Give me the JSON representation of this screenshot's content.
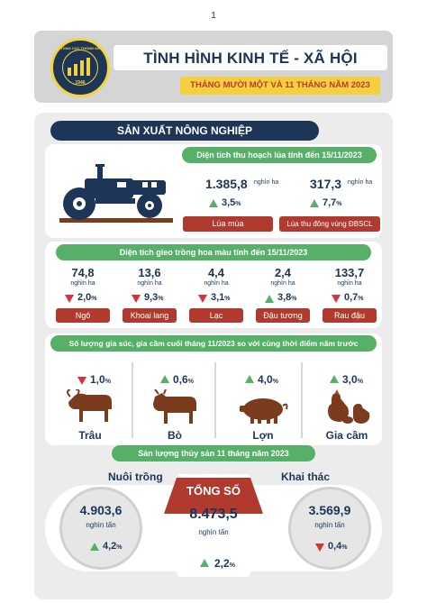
{
  "page_number": "1",
  "header": {
    "logo_text": "TỔNG CỤC THỐNG KÊ",
    "logo_years": "1946",
    "title": "TÌNH HÌNH KINH TẾ - XÃ HỘI",
    "subtitle": "THÁNG MƯỜI MỘT VÀ 11 THÁNG NĂM 2023"
  },
  "section_title": "SẢN XUẤT NÔNG NGHIỆP",
  "rice": {
    "heading": "Diện tích thu hoạch lúa tính đến 15/11/2023",
    "items": [
      {
        "value": "1.385,8",
        "unit": "nghìn ha",
        "change": "3,5",
        "pct": "%",
        "direction": "up",
        "label": "Lúa mùa"
      },
      {
        "value": "317,3",
        "unit": "nghìn ha",
        "change": "7,7",
        "pct": "%",
        "direction": "up",
        "label": "Lúa thu đông vùng ĐBSCL"
      }
    ]
  },
  "crops": {
    "heading": "Diện tích gieo trồng hoa màu tính đến 15/11/2023",
    "items": [
      {
        "value": "74,8",
        "unit": "nghìn ha",
        "change": "2,0",
        "pct": "%",
        "direction": "down",
        "label": "Ngô"
      },
      {
        "value": "13,6",
        "unit": "nghìn ha",
        "change": "9,3",
        "pct": "%",
        "direction": "down",
        "label": "Khoai lang"
      },
      {
        "value": "4,4",
        "unit": "nghìn ha",
        "change": "3,1",
        "pct": "%",
        "direction": "down",
        "label": "Lạc"
      },
      {
        "value": "2,4",
        "unit": "nghìn ha",
        "change": "3,8",
        "pct": "%",
        "direction": "up",
        "label": "Đậu tương"
      },
      {
        "value": "133,7",
        "unit": "nghìn ha",
        "change": "0,7",
        "pct": "%",
        "direction": "down",
        "label": "Rau đậu"
      }
    ]
  },
  "livestock": {
    "heading": "Số lượng gia súc, gia cầm cuối tháng 11/2023 so với cùng thời điểm năm trước",
    "items": [
      {
        "change": "1,0",
        "pct": "%",
        "direction": "down",
        "label": "Trâu"
      },
      {
        "change": "0,6",
        "pct": "%",
        "direction": "up",
        "label": "Bò"
      },
      {
        "change": "4,0",
        "pct": "%",
        "direction": "up",
        "label": "Lợn"
      },
      {
        "change": "3,0",
        "pct": "%",
        "direction": "up",
        "label": "Gia cầm"
      }
    ]
  },
  "fishery": {
    "heading": "Sản lượng thủy sản 11 tháng năm 2023",
    "aquaculture": {
      "label": "Nuôi trồng",
      "value": "4.903,6",
      "unit": "nghìn tấn",
      "change": "4,2",
      "pct": "%",
      "direction": "up"
    },
    "total": {
      "label": "TỔNG SỐ",
      "value": "8.473,5",
      "unit": "nghìn tấn",
      "change": "2,2",
      "pct": "%",
      "direction": "up"
    },
    "capture": {
      "label": "Khai thác",
      "value": "3.569,9",
      "unit": "nghìn tấn",
      "change": "0,4",
      "pct": "%",
      "direction": "down"
    }
  }
}
